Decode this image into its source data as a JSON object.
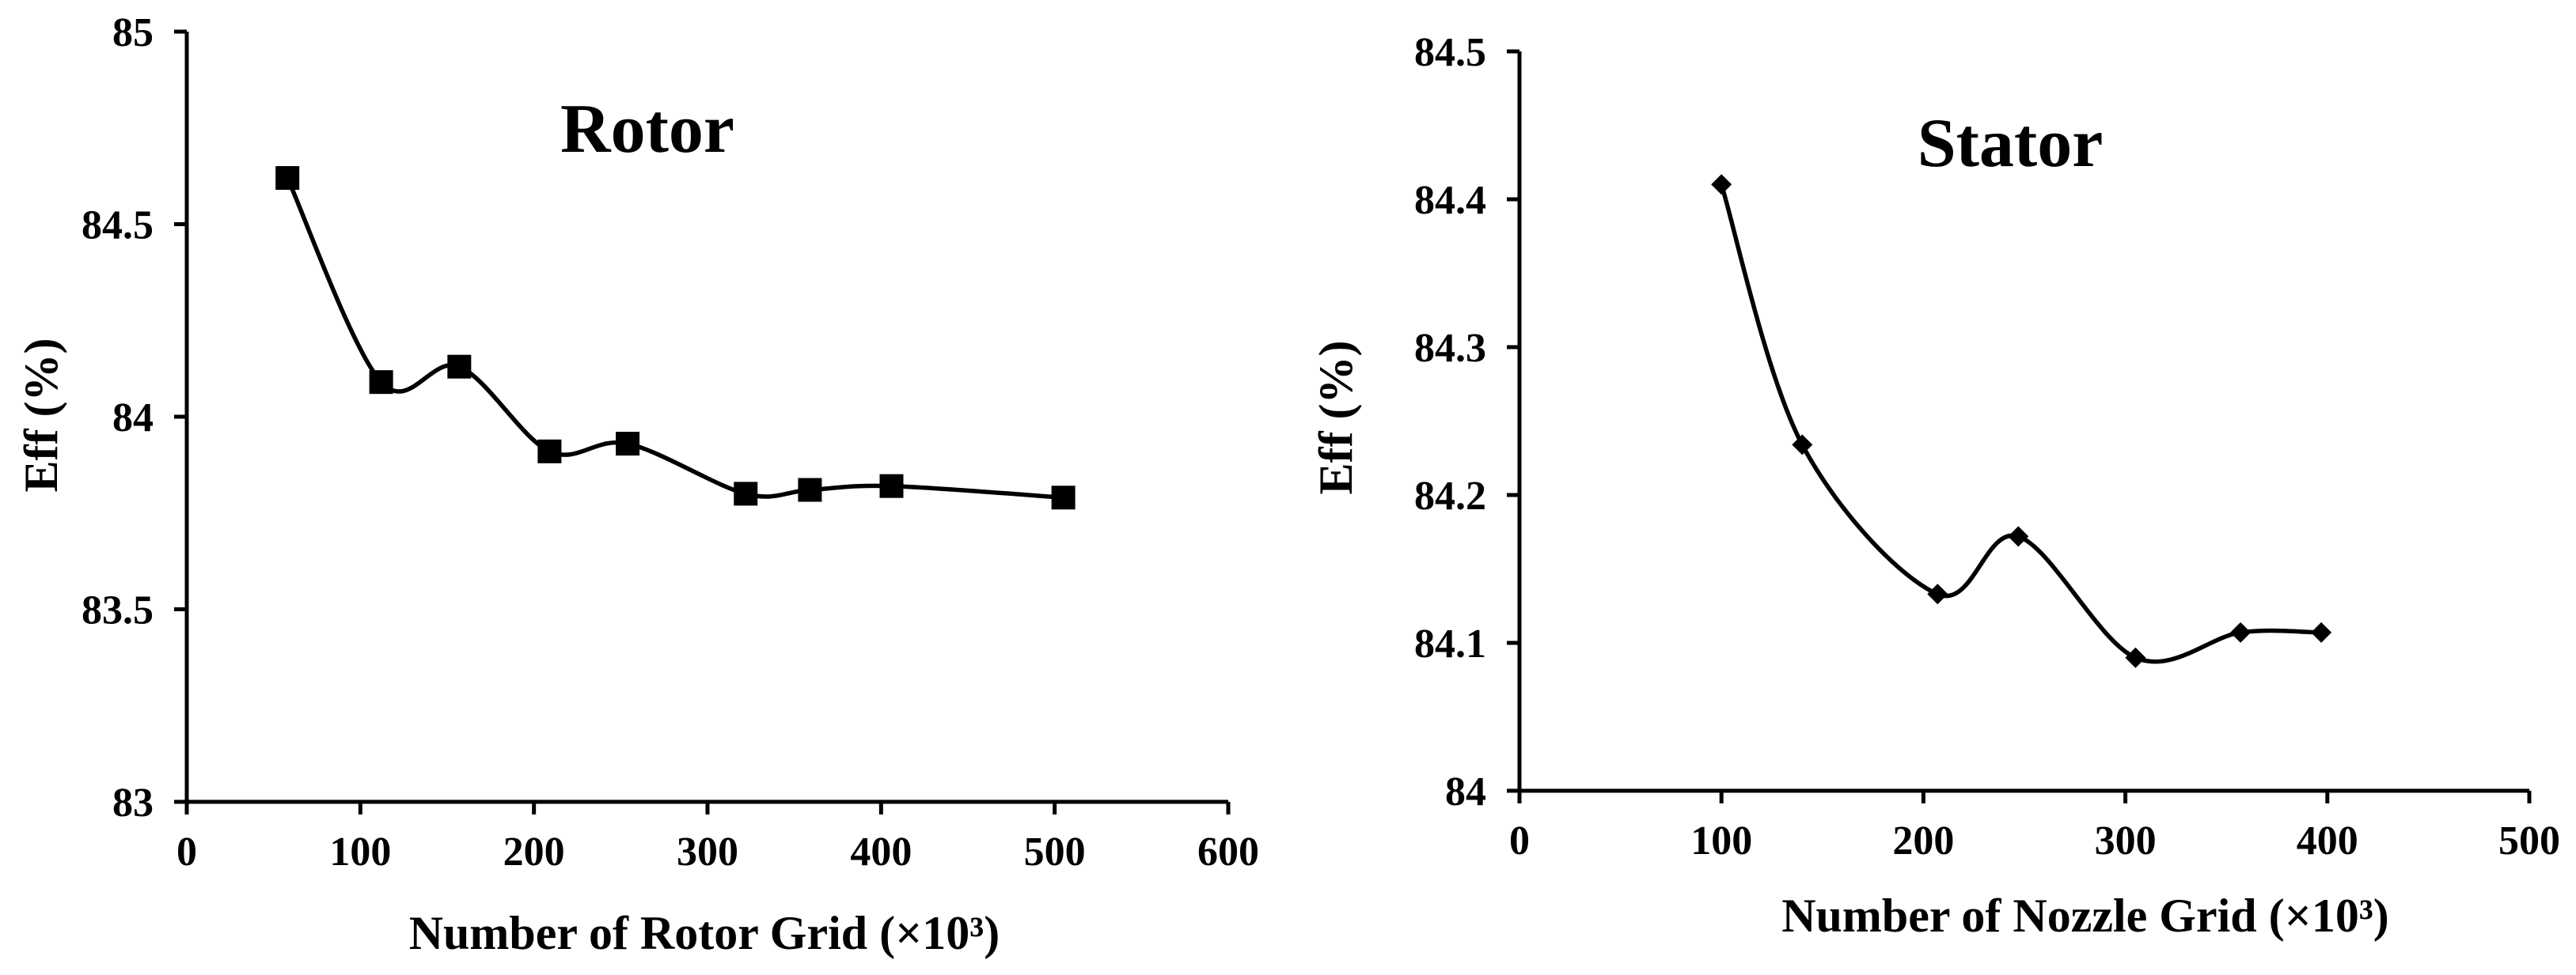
{
  "chart_data": [
    {
      "type": "line",
      "title": "Rotor",
      "xlabel": "Number of Rotor Grid (×10³)",
      "ylabel": "Eff (%)",
      "xlim": [
        0,
        600
      ],
      "ylim": [
        83,
        85
      ],
      "xticks": [
        0,
        100,
        200,
        300,
        400,
        500,
        600
      ],
      "yticks": [
        83,
        83.5,
        84,
        84.5,
        85
      ],
      "xtick_labels": [
        "0",
        "100",
        "200",
        "300",
        "400",
        "500",
        "600"
      ],
      "ytick_labels": [
        "83",
        "83.5",
        "84",
        "84.5",
        "85"
      ],
      "marker": "square",
      "grid": false,
      "series": [
        {
          "name": "Rotor",
          "x": [
            58,
            112,
            157,
            209,
            254,
            322,
            359,
            406,
            505
          ],
          "y": [
            84.62,
            84.09,
            84.13,
            83.91,
            83.93,
            83.8,
            83.81,
            83.82,
            83.79
          ]
        }
      ]
    },
    {
      "type": "line",
      "title": "Stator",
      "xlabel": "Number of Nozzle Grid (×10³)",
      "ylabel": "Eff (%)",
      "xlim": [
        0,
        500
      ],
      "ylim": [
        84,
        84.5
      ],
      "xticks": [
        0,
        100,
        200,
        300,
        400,
        500
      ],
      "yticks": [
        84,
        84.1,
        84.2,
        84.3,
        84.4,
        84.5
      ],
      "xtick_labels": [
        "0",
        "100",
        "200",
        "300",
        "400",
        "500"
      ],
      "ytick_labels": [
        "84",
        "84.1",
        "84.2",
        "84.3",
        "84.4",
        "84.5"
      ],
      "marker": "diamond",
      "grid": false,
      "series": [
        {
          "name": "Stator",
          "x": [
            100,
            140,
            207,
            247,
            305,
            357,
            397
          ],
          "y": [
            84.41,
            84.234,
            84.133,
            84.172,
            84.09,
            84.107,
            84.107
          ]
        }
      ]
    }
  ]
}
